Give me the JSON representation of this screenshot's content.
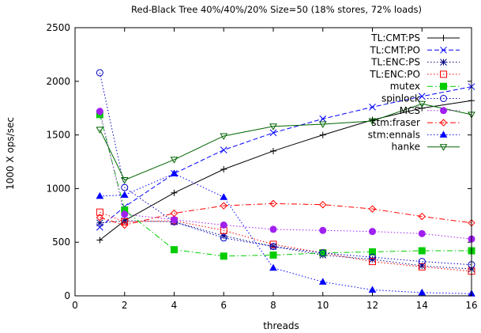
{
  "chart_data": {
    "type": "line",
    "title": "Red-Black Tree 40%/40%/20% Size=50 (18% stores, 72% loads)",
    "xlabel": "threads",
    "ylabel": "1000 X ops/sec",
    "xlim": [
      0,
      16
    ],
    "ylim": [
      0,
      2500
    ],
    "xticks": [
      "0",
      "2",
      "4",
      "6",
      "8",
      "10",
      "12",
      "14",
      "16"
    ],
    "yticks": [
      "0",
      "500",
      "1000",
      "1500",
      "2000",
      "2500"
    ],
    "legend_position": "top-right",
    "series": [
      {
        "name": "TL:CMT:PS",
        "color": "#000000",
        "marker": "plus",
        "dash": "solid",
        "x": [
          1,
          2,
          4,
          6,
          8,
          10,
          12,
          14,
          16
        ],
        "y": [
          520,
          700,
          960,
          1180,
          1350,
          1500,
          1640,
          1750,
          1820
        ]
      },
      {
        "name": "TL:CMT:PO",
        "color": "#0000ff",
        "marker": "cross",
        "dash": "dashed",
        "x": [
          1,
          2,
          4,
          6,
          8,
          10,
          12,
          14,
          16
        ],
        "y": [
          640,
          830,
          1140,
          1360,
          1520,
          1650,
          1760,
          1860,
          1950
        ]
      },
      {
        "name": "TL:ENC:PS",
        "color": "#000080",
        "marker": "star",
        "dash": "dotted",
        "x": [
          1,
          2,
          4,
          6,
          8,
          10,
          12,
          14,
          16
        ],
        "y": [
          680,
          700,
          690,
          560,
          460,
          380,
          340,
          280,
          250
        ]
      },
      {
        "name": "TL:ENC:PO",
        "color": "#ff0000",
        "marker": "square-open",
        "dash": "dotted",
        "x": [
          1,
          2,
          4,
          6,
          8,
          10,
          12,
          14,
          16
        ],
        "y": [
          780,
          690,
          700,
          610,
          480,
          400,
          320,
          270,
          230
        ]
      },
      {
        "name": "mutex",
        "color": "#00cc00",
        "marker": "square-filled",
        "dash": "dashdot",
        "x": [
          1,
          2,
          4,
          6,
          8,
          10,
          12,
          14,
          16
        ],
        "y": [
          1690,
          800,
          430,
          370,
          380,
          400,
          410,
          420,
          420
        ]
      },
      {
        "name": "spinlock",
        "color": "#0000c0",
        "marker": "circle-open",
        "dash": "dotted",
        "x": [
          1,
          2,
          4,
          6,
          8,
          10,
          12,
          14,
          16
        ],
        "y": [
          2080,
          1010,
          690,
          540,
          460,
          400,
          360,
          320,
          290
        ]
      },
      {
        "name": "MCS",
        "color": "#a020f0",
        "marker": "circle-filled",
        "dash": "dotted",
        "x": [
          1,
          2,
          4,
          6,
          8,
          10,
          12,
          14,
          16
        ],
        "y": [
          1720,
          760,
          710,
          660,
          620,
          610,
          600,
          580,
          530
        ]
      },
      {
        "name": "stm:fraser",
        "color": "#ff0000",
        "marker": "diamond-open",
        "dash": "dashdot",
        "x": [
          1,
          2,
          4,
          6,
          8,
          10,
          12,
          14,
          16
        ],
        "y": [
          730,
          660,
          770,
          840,
          860,
          850,
          810,
          740,
          680
        ]
      },
      {
        "name": "stm:ennals",
        "color": "#0000ff",
        "marker": "triangle-filled",
        "dash": "dotted",
        "x": [
          1,
          2,
          4,
          6,
          8,
          10,
          12,
          14,
          16
        ],
        "y": [
          930,
          940,
          1140,
          920,
          260,
          130,
          55,
          30,
          20
        ]
      },
      {
        "name": "hanke",
        "color": "#006400",
        "marker": "triangle-down-open",
        "dash": "solid",
        "x": [
          1,
          2,
          4,
          6,
          8,
          10,
          12,
          14,
          16
        ],
        "y": [
          1550,
          1080,
          1270,
          1490,
          1580,
          1600,
          1630,
          1790,
          1690
        ]
      }
    ]
  }
}
